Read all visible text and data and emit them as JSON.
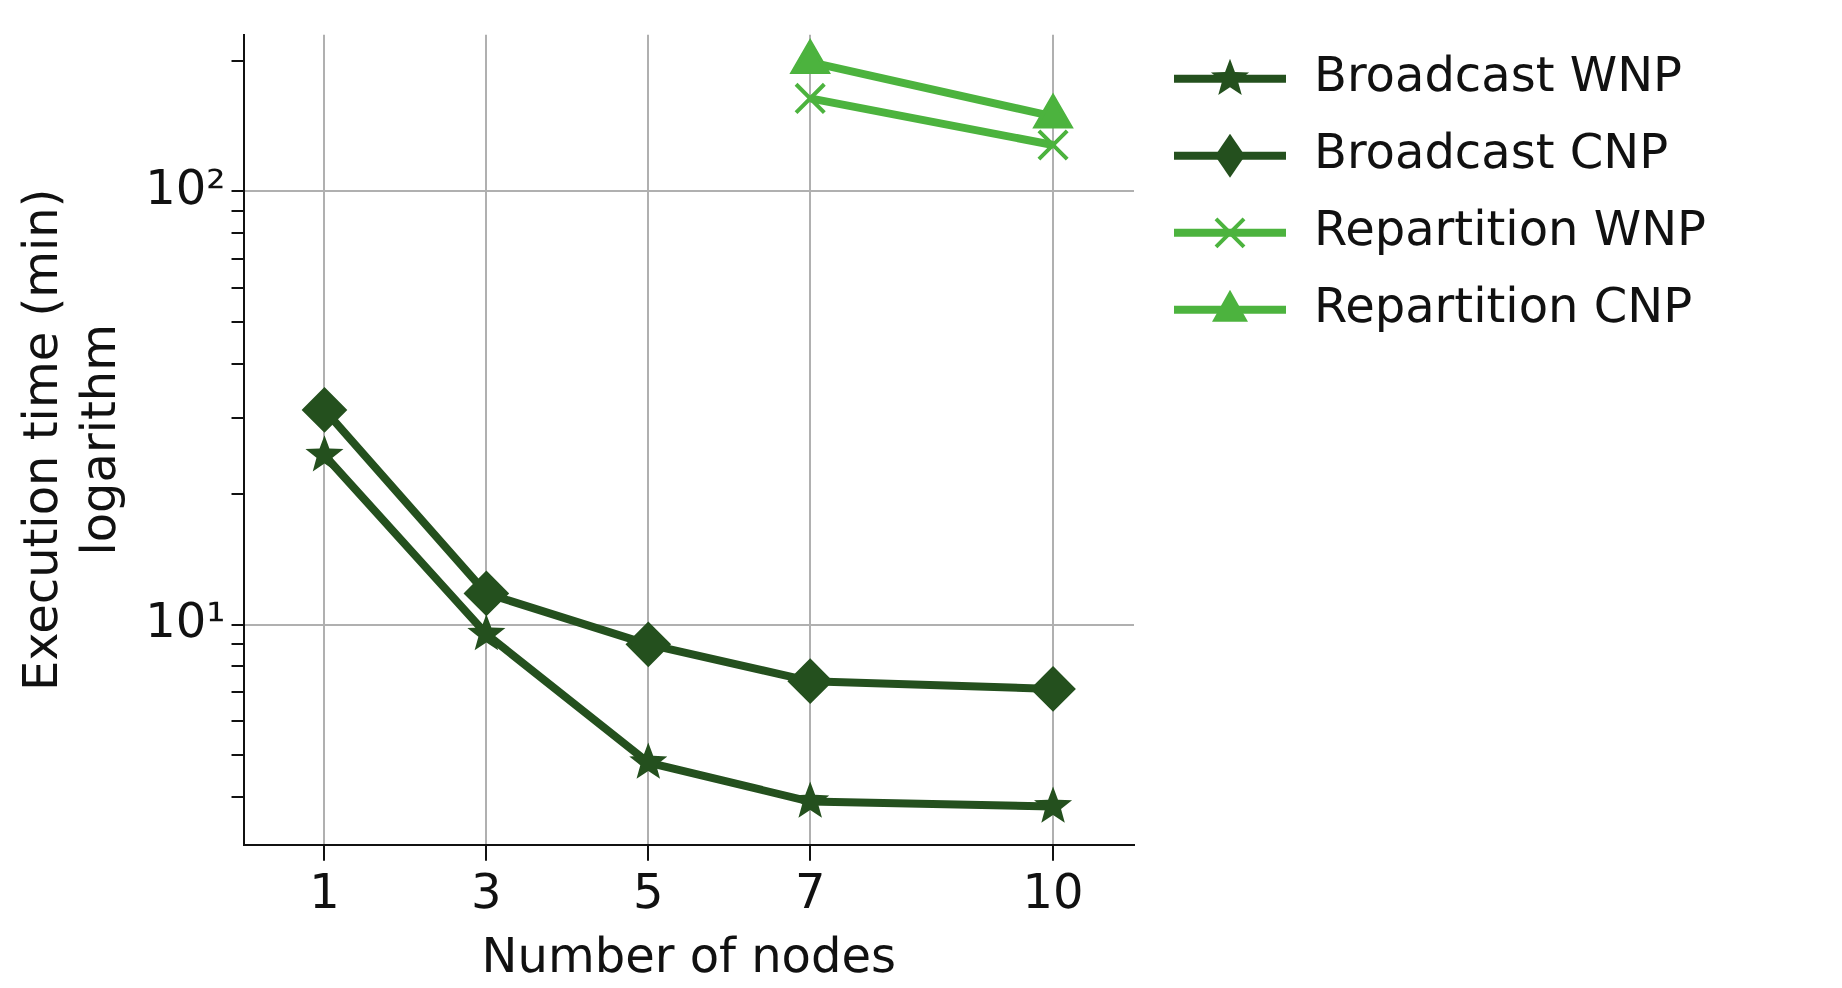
{
  "chart_data": {
    "type": "line",
    "xlabel": "Number of nodes",
    "ylabel": "Execution time (min)\nlogarithm",
    "log": "y",
    "grid": true,
    "legend": "right",
    "line_style": "solid",
    "xlim": [
      0,
      11
    ],
    "xticks": [
      1,
      3,
      5,
      7,
      10
    ],
    "ylim": [
      3.1,
      230
    ],
    "yticks": [
      {
        "value": 4,
        "label": null
      },
      {
        "value": 5,
        "label": null
      },
      {
        "value": 6,
        "label": null
      },
      {
        "value": 7,
        "label": null
      },
      {
        "value": 8,
        "label": null
      },
      {
        "value": 9,
        "label": null
      },
      {
        "value": 10,
        "label": "10¹"
      },
      {
        "value": 20,
        "label": null
      },
      {
        "value": 30,
        "label": null
      },
      {
        "value": 40,
        "label": null
      },
      {
        "value": 50,
        "label": null
      },
      {
        "value": 60,
        "label": null
      },
      {
        "value": 70,
        "label": null
      },
      {
        "value": 80,
        "label": null
      },
      {
        "value": 90,
        "label": null
      },
      {
        "value": 100,
        "label": "10²"
      },
      {
        "value": 200,
        "label": null
      }
    ],
    "series": [
      {
        "name": "Broadcast WNP",
        "color": "#24501e",
        "marker": "star",
        "x": [
          1,
          3,
          5,
          7,
          10
        ],
        "values": [
          24.6,
          9.5,
          4.8,
          3.9,
          3.8
        ]
      },
      {
        "name": "Broadcast CNP",
        "color": "#24501e",
        "marker": "diamond",
        "x": [
          1,
          3,
          5,
          7,
          10
        ],
        "values": [
          31.3,
          11.8,
          9.0,
          7.4,
          7.1
        ]
      },
      {
        "name": "Repartition WNP",
        "color": "#4cb33e",
        "marker": "cross",
        "x": [
          7,
          10
        ],
        "values": [
          164,
          128
        ]
      },
      {
        "name": "Repartition CNP",
        "color": "#4cb33e",
        "marker": "triangle",
        "x": [
          7,
          10
        ],
        "values": [
          199,
          149
        ]
      }
    ]
  }
}
